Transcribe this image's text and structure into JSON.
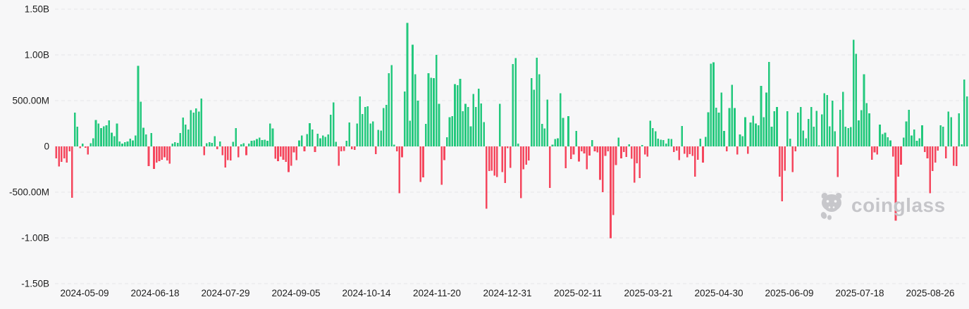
{
  "watermark": {
    "text": "coinglass",
    "icon": "coinglass-mascot-logo"
  },
  "chart_data": {
    "type": "bar",
    "title": "",
    "xlabel": "",
    "ylabel": "",
    "value_unit": "USD (millions)",
    "ylim": [
      -1500,
      1500
    ],
    "grid": "horizontal-dashed",
    "legend_position": "none",
    "colors": {
      "positive": "#23c87d",
      "negative": "#f5465d",
      "grid": "#e5e5e8",
      "axis_text": "#1c1c1c",
      "background": "#f7f7f8",
      "watermark": "#c5c5c9"
    },
    "y_ticks": [
      {
        "label": "1.50B",
        "value": 1500
      },
      {
        "label": "1.00B",
        "value": 1000
      },
      {
        "label": "500.00M",
        "value": 500
      },
      {
        "label": "0",
        "value": 0
      },
      {
        "label": "-500.00M",
        "value": -500
      },
      {
        "label": "-1.00B",
        "value": -1000
      },
      {
        "label": "-1.50B",
        "value": -1500
      }
    ],
    "x_tick_labels": [
      "2024-05-09",
      "2024-06-18",
      "2024-07-29",
      "2024-09-05",
      "2024-10-14",
      "2024-11-20",
      "2024-12-31",
      "2025-02-11",
      "2025-03-21",
      "2025-04-30",
      "2025-06-09",
      "2025-07-18",
      "2025-08-26"
    ],
    "values_millions": [
      -130,
      -220,
      -170,
      -130,
      -175,
      -55,
      -560,
      370,
      215,
      -20,
      30,
      -15,
      -90,
      35,
      90,
      290,
      250,
      200,
      220,
      230,
      285,
      150,
      110,
      250,
      55,
      30,
      45,
      55,
      85,
      65,
      120,
      880,
      490,
      205,
      130,
      -215,
      145,
      -245,
      -175,
      -160,
      -145,
      -120,
      -155,
      -190,
      30,
      45,
      40,
      145,
      315,
      240,
      185,
      395,
      370,
      415,
      380,
      525,
      -95,
      35,
      45,
      40,
      110,
      -30,
      55,
      -95,
      -230,
      -150,
      -155,
      50,
      200,
      -120,
      25,
      35,
      -95,
      30,
      60,
      65,
      80,
      95,
      70,
      75,
      60,
      250,
      195,
      -135,
      -160,
      -110,
      -145,
      -170,
      -280,
      -210,
      -65,
      -150,
      65,
      120,
      -55,
      135,
      255,
      185,
      -60,
      140,
      90,
      120,
      105,
      130,
      345,
      480,
      50,
      -210,
      -55,
      -50,
      60,
      260,
      -30,
      -40,
      250,
      545,
      355,
      430,
      440,
      250,
      275,
      -85,
      180,
      175,
      420,
      455,
      800,
      890,
      20,
      -55,
      -510,
      -120,
      600,
      1350,
      280,
      1110,
      790,
      500,
      -390,
      -340,
      245,
      800,
      750,
      745,
      1000,
      465,
      -420,
      -150,
      100,
      320,
      330,
      680,
      670,
      740,
      385,
      465,
      430,
      220,
      575,
      430,
      630,
      470,
      265,
      -680,
      -270,
      -265,
      -320,
      -335,
      465,
      -280,
      -400,
      -20,
      -235,
      900,
      965,
      30,
      -565,
      -250,
      -200,
      -155,
      745,
      620,
      970,
      790,
      245,
      195,
      510,
      -455,
      20,
      80,
      90,
      580,
      310,
      -240,
      330,
      -140,
      -90,
      170,
      -165,
      -55,
      -75,
      -250,
      -100,
      70,
      -55,
      -65,
      -365,
      -500,
      -105,
      -55,
      -1005,
      -750,
      -205,
      95,
      -130,
      -60,
      -115,
      25,
      -135,
      -395,
      -185,
      -345,
      15,
      -90,
      -110,
      280,
      200,
      165,
      85,
      75,
      70,
      30,
      85,
      80,
      -60,
      -45,
      -150,
      225,
      -80,
      -120,
      -85,
      -105,
      -330,
      -145,
      85,
      -175,
      105,
      375,
      905,
      920,
      425,
      370,
      590,
      170,
      -55,
      420,
      675,
      420,
      -90,
      130,
      110,
      320,
      -80,
      260,
      335,
      250,
      230,
      660,
      320,
      590,
      925,
      215,
      385,
      430,
      -330,
      -600,
      -265,
      385,
      85,
      -280,
      -55,
      370,
      430,
      175,
      90,
      300,
      430,
      215,
      390,
      10,
      350,
      580,
      560,
      220,
      500,
      165,
      -335,
      400,
      595,
      215,
      200,
      210,
      1165,
      1010,
      285,
      395,
      790,
      475,
      360,
      -145,
      -65,
      -90,
      240,
      135,
      150,
      100,
      65,
      -110,
      -810,
      -330,
      -200,
      95,
      275,
      400,
      120,
      185,
      60,
      90,
      230,
      -60,
      -130,
      -510,
      -270,
      -175,
      -45,
      230,
      215,
      -130,
      380,
      320,
      -210,
      -215,
      360,
      25,
      730,
      545
    ]
  }
}
